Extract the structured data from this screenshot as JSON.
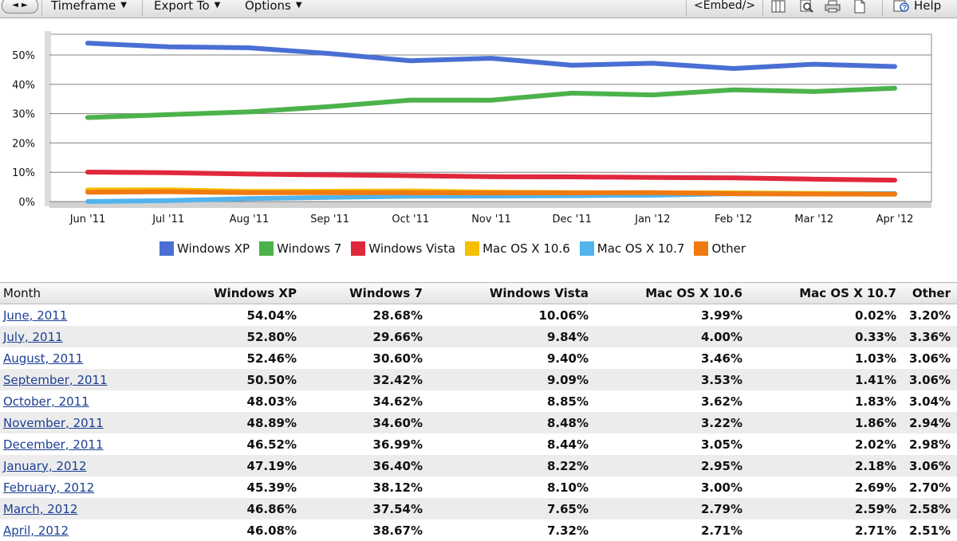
{
  "toolbar": {
    "back_glyph": "◄",
    "forward_glyph": "►",
    "timeframe": "Timeframe",
    "export_to": "Export To",
    "options": "Options",
    "embed": "<Embed/>",
    "help": "Help",
    "icons": [
      "columns-icon",
      "search-zoom-icon",
      "print-icon",
      "document-icon",
      "help-icon"
    ]
  },
  "colors": {
    "Windows XP": "#4a6fd4",
    "Windows 7": "#4cb24c",
    "Windows Vista": "#e0283c",
    "Mac OS X 10.6": "#f5c000",
    "Mac OS X 10.7": "#52b4ec",
    "Other": "#f07a10"
  },
  "legend": [
    "Windows XP",
    "Windows 7",
    "Windows Vista",
    "Mac OS X 10.6",
    "Mac OS X 10.7",
    "Other"
  ],
  "chart_data": {
    "type": "line",
    "categories": [
      "Jun '11",
      "Jul '11",
      "Aug '11",
      "Sep '11",
      "Oct '11",
      "Nov '11",
      "Dec '11",
      "Jan '12",
      "Feb '12",
      "Mar '12",
      "Apr '12"
    ],
    "yticks": [
      "0%",
      "10%",
      "20%",
      "30%",
      "40%",
      "50%"
    ],
    "ylim": [
      0,
      55
    ],
    "grid": true,
    "legend_position": "bottom",
    "series": [
      {
        "name": "Windows XP",
        "values": [
          54.04,
          52.8,
          52.46,
          50.5,
          48.03,
          48.89,
          46.52,
          47.19,
          45.39,
          46.86,
          46.08
        ]
      },
      {
        "name": "Windows 7",
        "values": [
          28.68,
          29.66,
          30.6,
          32.42,
          34.62,
          34.6,
          36.99,
          36.4,
          38.12,
          37.54,
          38.67
        ]
      },
      {
        "name": "Windows Vista",
        "values": [
          10.06,
          9.84,
          9.4,
          9.09,
          8.85,
          8.48,
          8.44,
          8.22,
          8.1,
          7.65,
          7.32
        ]
      },
      {
        "name": "Mac OS X 10.6",
        "values": [
          3.99,
          4.0,
          3.46,
          3.53,
          3.62,
          3.22,
          3.05,
          2.95,
          3.0,
          2.79,
          2.71
        ]
      },
      {
        "name": "Mac OS X 10.7",
        "values": [
          0.02,
          0.33,
          1.03,
          1.41,
          1.83,
          1.86,
          2.02,
          2.18,
          2.69,
          2.59,
          2.71
        ]
      },
      {
        "name": "Other",
        "values": [
          3.2,
          3.36,
          3.06,
          3.06,
          3.04,
          2.94,
          2.98,
          3.06,
          2.7,
          2.58,
          2.51
        ]
      }
    ]
  },
  "table": {
    "headers": [
      "Month",
      "Windows XP",
      "Windows 7",
      "Windows Vista",
      "Mac OS X 10.6",
      "Mac OS X 10.7",
      "Other"
    ],
    "rows": [
      [
        "June, 2011",
        "54.04%",
        "28.68%",
        "10.06%",
        "3.99%",
        "0.02%",
        "3.20%"
      ],
      [
        "July, 2011",
        "52.80%",
        "29.66%",
        "9.84%",
        "4.00%",
        "0.33%",
        "3.36%"
      ],
      [
        "August, 2011",
        "52.46%",
        "30.60%",
        "9.40%",
        "3.46%",
        "1.03%",
        "3.06%"
      ],
      [
        "September, 2011",
        "50.50%",
        "32.42%",
        "9.09%",
        "3.53%",
        "1.41%",
        "3.06%"
      ],
      [
        "October, 2011",
        "48.03%",
        "34.62%",
        "8.85%",
        "3.62%",
        "1.83%",
        "3.04%"
      ],
      [
        "November, 2011",
        "48.89%",
        "34.60%",
        "8.48%",
        "3.22%",
        "1.86%",
        "2.94%"
      ],
      [
        "December, 2011",
        "46.52%",
        "36.99%",
        "8.44%",
        "3.05%",
        "2.02%",
        "2.98%"
      ],
      [
        "January, 2012",
        "47.19%",
        "36.40%",
        "8.22%",
        "2.95%",
        "2.18%",
        "3.06%"
      ],
      [
        "February, 2012",
        "45.39%",
        "38.12%",
        "8.10%",
        "3.00%",
        "2.69%",
        "2.70%"
      ],
      [
        "March, 2012",
        "46.86%",
        "37.54%",
        "7.65%",
        "2.79%",
        "2.59%",
        "2.58%"
      ],
      [
        "April, 2012",
        "46.08%",
        "38.67%",
        "7.32%",
        "2.71%",
        "2.71%",
        "2.51%"
      ]
    ]
  }
}
